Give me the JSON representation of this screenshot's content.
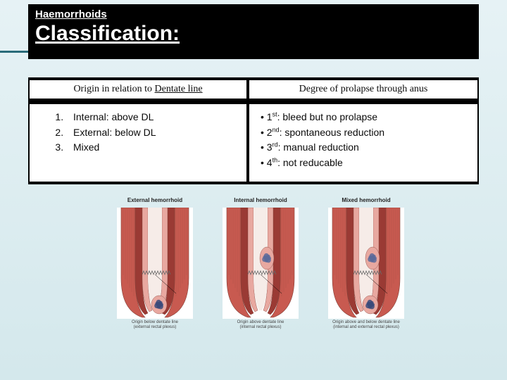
{
  "header": {
    "subtitle": "Haemorrhoids",
    "title": "Classification:"
  },
  "table": {
    "left": {
      "header_prefix": "Origin in relation to ",
      "header_ul": "Dentate line",
      "items": [
        "Internal: above DL",
        "External: below DL",
        "Mixed"
      ]
    },
    "right": {
      "header": "Degree of prolapse through anus",
      "items": [
        {
          "ord": "1",
          "sup": "st",
          "text": ": bleed but no prolapse"
        },
        {
          "ord": "2",
          "sup": "nd",
          "text": ": spontaneous reduction"
        },
        {
          "ord": "3",
          "sup": "rd",
          "text": ": manual reduction"
        },
        {
          "ord": "4",
          "sup": "th",
          "text": ": not reducable"
        }
      ]
    }
  },
  "illustrations": {
    "colors": {
      "mucosa": "#e8a8a0",
      "muscle": "#c85a50",
      "muscle_dark": "#9a3a34",
      "vein_ext": "#3a4a7a",
      "vein_int": "#5a6a9a",
      "line": "#6a6a6a",
      "bg": "#ffffff",
      "stroke": "#844038"
    },
    "items": [
      {
        "title": "External hemorrhoid",
        "caption_l1": "Origin below dentate line",
        "caption_l2": "(external rectal plexus)",
        "ext": true,
        "int": false
      },
      {
        "title": "Internal hemorrhoid",
        "caption_l1": "Origin above dentate line",
        "caption_l2": "(internal rectal plexus)",
        "ext": false,
        "int": true
      },
      {
        "title": "Mixed hemorrhoid",
        "caption_l1": "Origin above and below dentate line",
        "caption_l2": "(internal and external rectal plexus)",
        "ext": true,
        "int": true
      }
    ]
  }
}
